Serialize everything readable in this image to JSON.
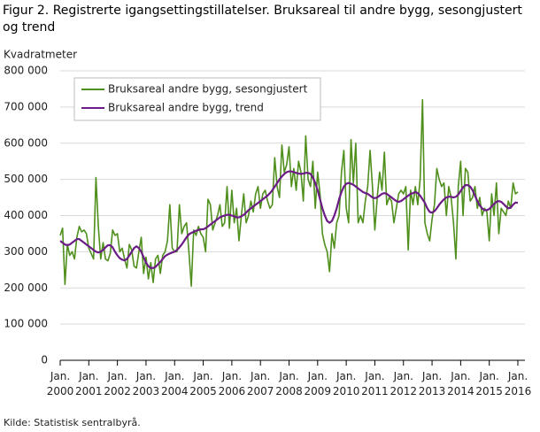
{
  "chart_data": {
    "type": "line",
    "title": "Figur 2. Registrerte igangsettingstillatelser. Bruksareal til andre bygg, sesongjustert og trend",
    "y_label": "Kvadratmeter",
    "source": "Kilde:  Statistisk sentralbyrå.",
    "x": [
      "2000-01",
      "2000-02",
      "2000-03",
      "2000-04",
      "2000-05",
      "2000-06",
      "2000-07",
      "2000-08",
      "2000-09",
      "2000-10",
      "2000-11",
      "2000-12",
      "2001-01",
      "2001-02",
      "2001-03",
      "2001-04",
      "2001-05",
      "2001-06",
      "2001-07",
      "2001-08",
      "2001-09",
      "2001-10",
      "2001-11",
      "2001-12",
      "2002-01",
      "2002-02",
      "2002-03",
      "2002-04",
      "2002-05",
      "2002-06",
      "2002-07",
      "2002-08",
      "2002-09",
      "2002-10",
      "2002-11",
      "2002-12",
      "2003-01",
      "2003-02",
      "2003-03",
      "2003-04",
      "2003-05",
      "2003-06",
      "2003-07",
      "2003-08",
      "2003-09",
      "2003-10",
      "2003-11",
      "2003-12",
      "2004-01",
      "2004-02",
      "2004-03",
      "2004-04",
      "2004-05",
      "2004-06",
      "2004-07",
      "2004-08",
      "2004-09",
      "2004-10",
      "2004-11",
      "2004-12",
      "2005-01",
      "2005-02",
      "2005-03",
      "2005-04",
      "2005-05",
      "2005-06",
      "2005-07",
      "2005-08",
      "2005-09",
      "2005-10",
      "2005-11",
      "2005-12",
      "2006-01",
      "2006-02",
      "2006-03",
      "2006-04",
      "2006-05",
      "2006-06",
      "2006-07",
      "2006-08",
      "2006-09",
      "2006-10",
      "2006-11",
      "2006-12",
      "2007-01",
      "2007-02",
      "2007-03",
      "2007-04",
      "2007-05",
      "2007-06",
      "2007-07",
      "2007-08",
      "2007-09",
      "2007-10",
      "2007-11",
      "2007-12",
      "2008-01",
      "2008-02",
      "2008-03",
      "2008-04",
      "2008-05",
      "2008-06",
      "2008-07",
      "2008-08",
      "2008-09",
      "2008-10",
      "2008-11",
      "2008-12",
      "2009-01",
      "2009-02",
      "2009-03",
      "2009-04",
      "2009-05",
      "2009-06",
      "2009-07",
      "2009-08",
      "2009-09",
      "2009-10",
      "2009-11",
      "2009-12",
      "2010-01",
      "2010-02",
      "2010-03",
      "2010-04",
      "2010-05",
      "2010-06",
      "2010-07",
      "2010-08",
      "2010-09",
      "2010-10",
      "2010-11",
      "2010-12",
      "2011-01",
      "2011-02",
      "2011-03",
      "2011-04",
      "2011-05",
      "2011-06",
      "2011-07",
      "2011-08",
      "2011-09",
      "2011-10",
      "2011-11",
      "2011-12",
      "2012-01",
      "2012-02",
      "2012-03",
      "2012-04",
      "2012-05",
      "2012-06",
      "2012-07",
      "2012-08",
      "2012-09",
      "2012-10",
      "2012-11",
      "2012-12",
      "2013-01",
      "2013-02",
      "2013-03",
      "2013-04",
      "2013-05",
      "2013-06",
      "2013-07",
      "2013-08",
      "2013-09",
      "2013-10",
      "2013-11",
      "2013-12",
      "2014-01",
      "2014-02",
      "2014-03",
      "2014-04",
      "2014-05",
      "2014-06",
      "2014-07",
      "2014-08",
      "2014-09",
      "2014-10",
      "2014-11",
      "2014-12",
      "2015-01",
      "2015-02",
      "2015-03",
      "2015-04",
      "2015-05",
      "2015-06",
      "2015-07",
      "2015-08",
      "2015-09",
      "2015-10",
      "2015-11",
      "2015-12",
      "2016-01"
    ],
    "series": [
      {
        "name": "Bruksareal andre bygg, sesongjustert",
        "color": "#4f8f1c",
        "values": [
          345000,
          365000,
          210000,
          320000,
          290000,
          300000,
          280000,
          340000,
          370000,
          355000,
          360000,
          350000,
          310000,
          295000,
          280000,
          505000,
          370000,
          280000,
          325000,
          280000,
          275000,
          295000,
          360000,
          345000,
          350000,
          300000,
          310000,
          280000,
          255000,
          320000,
          305000,
          260000,
          255000,
          300000,
          340000,
          240000,
          285000,
          225000,
          270000,
          215000,
          280000,
          290000,
          240000,
          290000,
          300000,
          330000,
          430000,
          310000,
          300000,
          300000,
          430000,
          350000,
          370000,
          380000,
          300000,
          205000,
          360000,
          345000,
          370000,
          350000,
          340000,
          300000,
          445000,
          430000,
          360000,
          380000,
          400000,
          430000,
          370000,
          380000,
          480000,
          365000,
          470000,
          380000,
          420000,
          330000,
          400000,
          460000,
          380000,
          400000,
          440000,
          410000,
          460000,
          480000,
          420000,
          460000,
          470000,
          440000,
          420000,
          430000,
          560000,
          480000,
          450000,
          595000,
          520000,
          540000,
          590000,
          480000,
          530000,
          470000,
          550000,
          520000,
          440000,
          620000,
          500000,
          480000,
          550000,
          420000,
          520000,
          460000,
          350000,
          320000,
          300000,
          245000,
          350000,
          310000,
          380000,
          400000,
          520000,
          580000,
          420000,
          380000,
          610000,
          490000,
          600000,
          380000,
          400000,
          380000,
          440000,
          480000,
          580000,
          480000,
          360000,
          450000,
          520000,
          470000,
          575000,
          430000,
          450000,
          440000,
          380000,
          420000,
          460000,
          470000,
          460000,
          480000,
          305000,
          470000,
          430000,
          480000,
          430000,
          500000,
          720000,
          380000,
          350000,
          330000,
          390000,
          430000,
          530000,
          500000,
          480000,
          490000,
          400000,
          480000,
          450000,
          380000,
          280000,
          480000,
          550000,
          400000,
          530000,
          520000,
          440000,
          450000,
          480000,
          420000,
          450000,
          400000,
          420000,
          410000,
          330000,
          460000,
          400000,
          490000,
          350000,
          420000,
          410000,
          400000,
          440000,
          420000,
          490000,
          460000,
          465000
        ]
      },
      {
        "name": "Bruksareal andre bygg, trend",
        "color": "#6b1c86",
        "values": [
          330000,
          325000,
          320000,
          318000,
          320000,
          325000,
          330000,
          335000,
          335000,
          330000,
          325000,
          320000,
          315000,
          310000,
          305000,
          300000,
          298000,
          300000,
          305000,
          312000,
          318000,
          318000,
          312000,
          300000,
          290000,
          282000,
          278000,
          276000,
          280000,
          290000,
          300000,
          310000,
          315000,
          310000,
          300000,
          285000,
          270000,
          260000,
          255000,
          255000,
          258000,
          265000,
          272000,
          280000,
          288000,
          292000,
          295000,
          298000,
          300000,
          305000,
          312000,
          320000,
          330000,
          340000,
          348000,
          352000,
          355000,
          358000,
          360000,
          362000,
          362000,
          365000,
          370000,
          375000,
          380000,
          385000,
          390000,
          395000,
          398000,
          400000,
          402000,
          402000,
          400000,
          398000,
          395000,
          395000,
          398000,
          402000,
          408000,
          415000,
          420000,
          425000,
          430000,
          435000,
          440000,
          445000,
          450000,
          455000,
          462000,
          470000,
          480000,
          490000,
          500000,
          508000,
          515000,
          520000,
          522000,
          522000,
          520000,
          518000,
          516000,
          515000,
          516000,
          518000,
          518000,
          515000,
          505000,
          490000,
          470000,
          445000,
          420000,
          400000,
          385000,
          380000,
          385000,
          400000,
          420000,
          445000,
          465000,
          480000,
          488000,
          490000,
          488000,
          485000,
          480000,
          475000,
          470000,
          465000,
          462000,
          460000,
          455000,
          450000,
          448000,
          450000,
          455000,
          460000,
          462000,
          460000,
          455000,
          450000,
          445000,
          440000,
          438000,
          440000,
          445000,
          450000,
          455000,
          460000,
          462000,
          465000,
          462000,
          455000,
          445000,
          435000,
          420000,
          410000,
          408000,
          412000,
          420000,
          430000,
          438000,
          445000,
          450000,
          452000,
          452000,
          450000,
          452000,
          458000,
          468000,
          478000,
          484000,
          484000,
          480000,
          470000,
          455000,
          440000,
          428000,
          420000,
          415000,
          415000,
          418000,
          425000,
          432000,
          438000,
          440000,
          438000,
          432000,
          425000,
          420000,
          422000,
          430000,
          436000,
          435000
        ]
      }
    ],
    "xlim": [
      "2000-01",
      "2016-01"
    ],
    "xticks": [
      {
        "value": "2000-01",
        "label": [
          "Jan.",
          "2000"
        ]
      },
      {
        "value": "2001-01",
        "label": [
          "Jan.",
          "2001"
        ]
      },
      {
        "value": "2002-01",
        "label": [
          "Jan.",
          "2002"
        ]
      },
      {
        "value": "2003-01",
        "label": [
          "Jan.",
          "2003"
        ]
      },
      {
        "value": "2004-01",
        "label": [
          "Jan.",
          "2004"
        ]
      },
      {
        "value": "2005-01",
        "label": [
          "Jan.",
          "2005"
        ]
      },
      {
        "value": "2006-01",
        "label": [
          "Jan.",
          "2006"
        ]
      },
      {
        "value": "2007-01",
        "label": [
          "Jan.",
          "2007"
        ]
      },
      {
        "value": "2008-01",
        "label": [
          "Jan.",
          "2008"
        ]
      },
      {
        "value": "2009-01",
        "label": [
          "Jan.",
          "2009"
        ]
      },
      {
        "value": "2010-01",
        "label": [
          "Jan.",
          "2010"
        ]
      },
      {
        "value": "2011-01",
        "label": [
          "Jan.",
          "2011"
        ]
      },
      {
        "value": "2012-01",
        "label": [
          "Jan.",
          "2012"
        ]
      },
      {
        "value": "2013-01",
        "label": [
          "Jan.",
          "2013"
        ]
      },
      {
        "value": "2014-01",
        "label": [
          "Jan.",
          "2014"
        ]
      },
      {
        "value": "2015-01",
        "label": [
          "Jan.",
          "2015"
        ]
      },
      {
        "value": "2016-01",
        "label": [
          "Jan.",
          "2016"
        ]
      }
    ],
    "ylim": [
      0,
      800000
    ],
    "yticks": [
      0,
      {
        "value": 100000,
        "label": "100 000"
      },
      {
        "value": 200000,
        "label": "200 000"
      },
      {
        "value": 300000,
        "label": "300 000"
      },
      {
        "value": 400000,
        "label": "400 000"
      },
      {
        "value": 500000,
        "label": "500 000"
      },
      {
        "value": 600000,
        "label": "600 000"
      },
      {
        "value": 700000,
        "label": "700 000"
      },
      {
        "value": 800000,
        "label": "800 000"
      }
    ],
    "grid": true,
    "legend": "top-left"
  }
}
